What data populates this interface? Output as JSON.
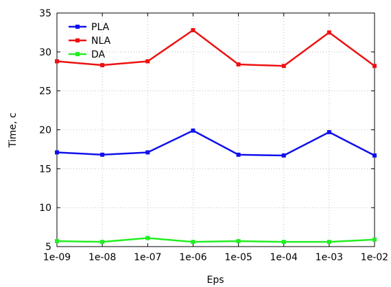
{
  "chart_data": {
    "type": "line",
    "xlabel": "Eps",
    "ylabel": "Time, c",
    "x": [
      "1e-09",
      "1e-08",
      "1e-07",
      "1e-06",
      "1e-05",
      "1e-04",
      "1e-03",
      "1e-02"
    ],
    "ylim": [
      5,
      35
    ],
    "yticks": [
      5,
      10,
      15,
      20,
      25,
      30,
      35
    ],
    "grid": true,
    "legend_position": "top-left",
    "series": [
      {
        "name": "PLA",
        "color": "#1010ee",
        "values": [
          17.1,
          16.8,
          17.1,
          19.9,
          16.8,
          16.7,
          19.7,
          16.7
        ]
      },
      {
        "name": "NLA",
        "color": "#ee1010",
        "values": [
          28.8,
          28.3,
          28.8,
          32.8,
          28.4,
          28.2,
          32.5,
          28.2
        ]
      },
      {
        "name": "DA",
        "color": "#22ee22",
        "values": [
          5.7,
          5.6,
          6.1,
          5.6,
          5.7,
          5.6,
          5.6,
          5.9
        ]
      }
    ]
  }
}
